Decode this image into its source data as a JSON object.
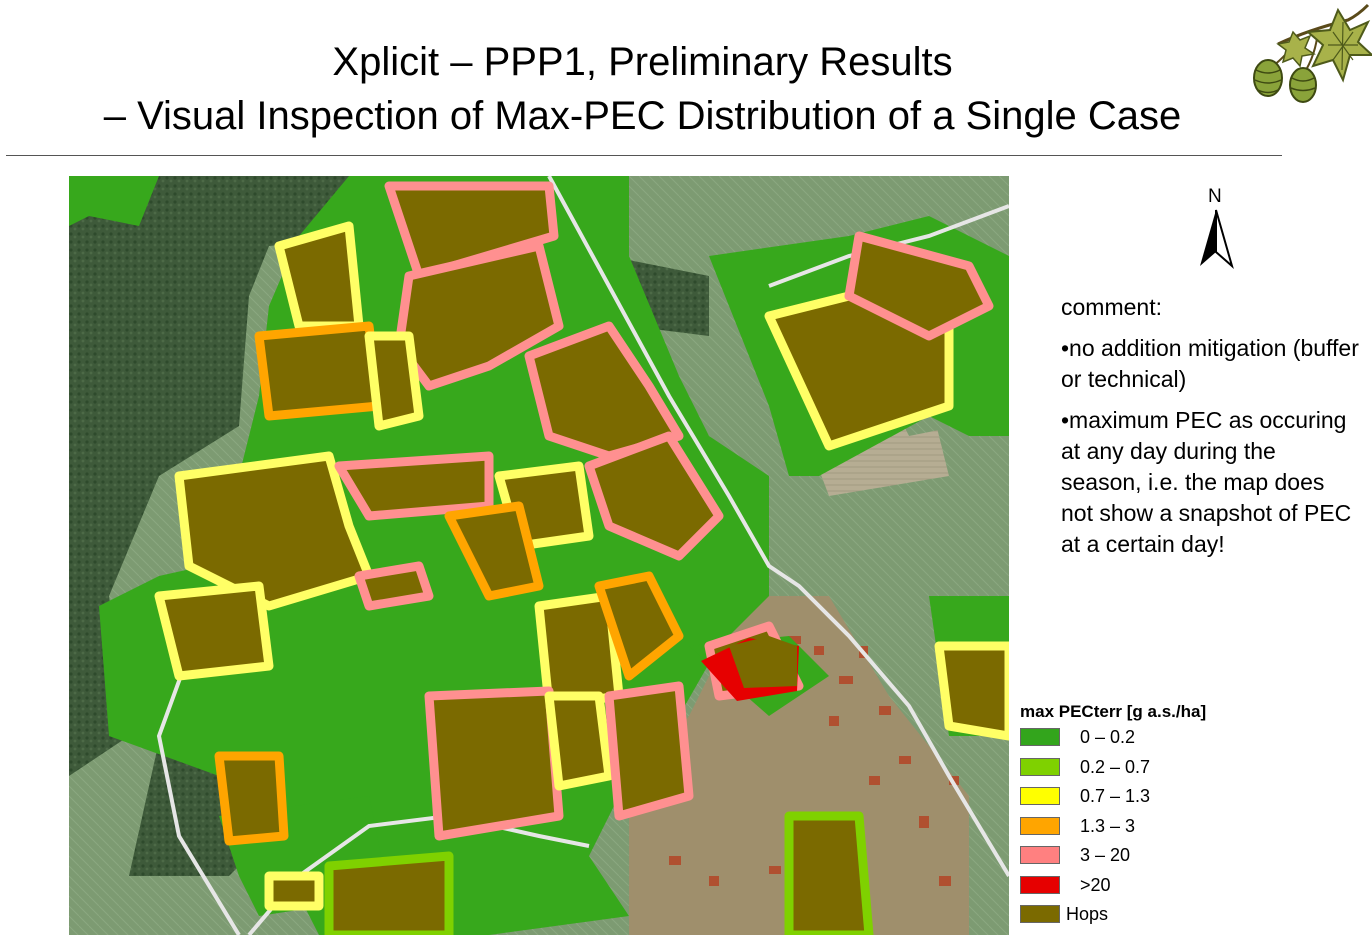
{
  "slide": {
    "title_line1": "Xplicit – PPP1, Preliminary Results",
    "title_line2": "– Visual Inspection of Max-PEC Distribution of a Single Case"
  },
  "map": {
    "north_label": "N",
    "colors": {
      "forest": "#3e5a3a",
      "meadow": "#7b9a6a",
      "buffer_0_0_2": "#37a81c",
      "hops": "#7b6a00",
      "high": "#e60000"
    }
  },
  "comment": {
    "heading": "comment:",
    "bullet1": "•no addition mitigation (buffer or technical)",
    "bullet2": "•maximum PEC as occuring at any day during the season, i.e. the map does not show a snapshot of PEC at a certain day!"
  },
  "legend": {
    "title": "max PECterr [g a.s./ha]",
    "items": [
      {
        "label": "0 – 0.2",
        "color": "#33a51c"
      },
      {
        "label": "0.2 – 0.7",
        "color": "#7fd100"
      },
      {
        "label": "0.7 – 1.3",
        "color": "#ffff00"
      },
      {
        "label": "1.3 – 3",
        "color": "#ffa500"
      },
      {
        "label": "3 – 20",
        "color": "#ff8080"
      },
      {
        "label": ">20",
        "color": "#e60000"
      },
      {
        "label": "Hops",
        "color": "#7b6a00"
      }
    ]
  }
}
